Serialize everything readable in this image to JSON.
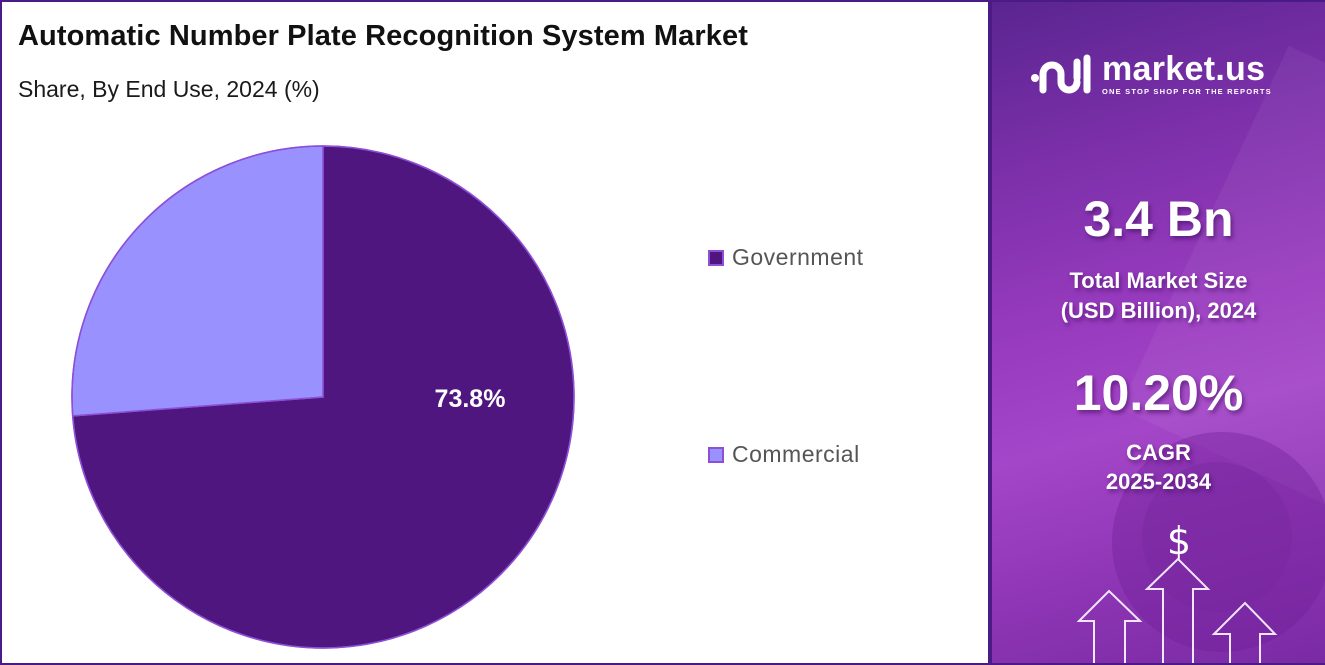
{
  "header": {
    "title": "Automatic Number Plate Recognition System Market",
    "subtitle": "Share, By End Use, 2024 (%)"
  },
  "chart_data": {
    "type": "pie",
    "title": "Automatic Number Plate Recognition System Market",
    "subtitle": "Share, By End Use, 2024 (%)",
    "categories": [
      "Government",
      "Commercial"
    ],
    "values": [
      73.8,
      26.2
    ],
    "colors": [
      "#4e167e",
      "#9891fe"
    ],
    "data_labels": [
      "73.8%",
      ""
    ],
    "start_angle": "12 o'clock, clockwise",
    "legend_position": "right"
  },
  "pie": {
    "label_government": "73.8%"
  },
  "legend": {
    "items": [
      {
        "label": "Government",
        "color": "#4e167e"
      },
      {
        "label": "Commercial",
        "color": "#9891fe"
      }
    ]
  },
  "sidebar": {
    "brand_name": "market.us",
    "brand_tagline": "ONE STOP SHOP FOR THE REPORTS",
    "market_size_value": "3.4 Bn",
    "market_size_label_line1": "Total Market Size",
    "market_size_label_line2": "(USD Billion), 2024",
    "cagr_value": "10.20%",
    "cagr_label_line1": "CAGR",
    "cagr_label_line2": "2025-2034",
    "currency_symbol": "$"
  },
  "colors": {
    "frame": "#4a1a86",
    "government": "#4e167e",
    "commercial": "#9891fe",
    "slice_border": "#8c4fd6"
  }
}
